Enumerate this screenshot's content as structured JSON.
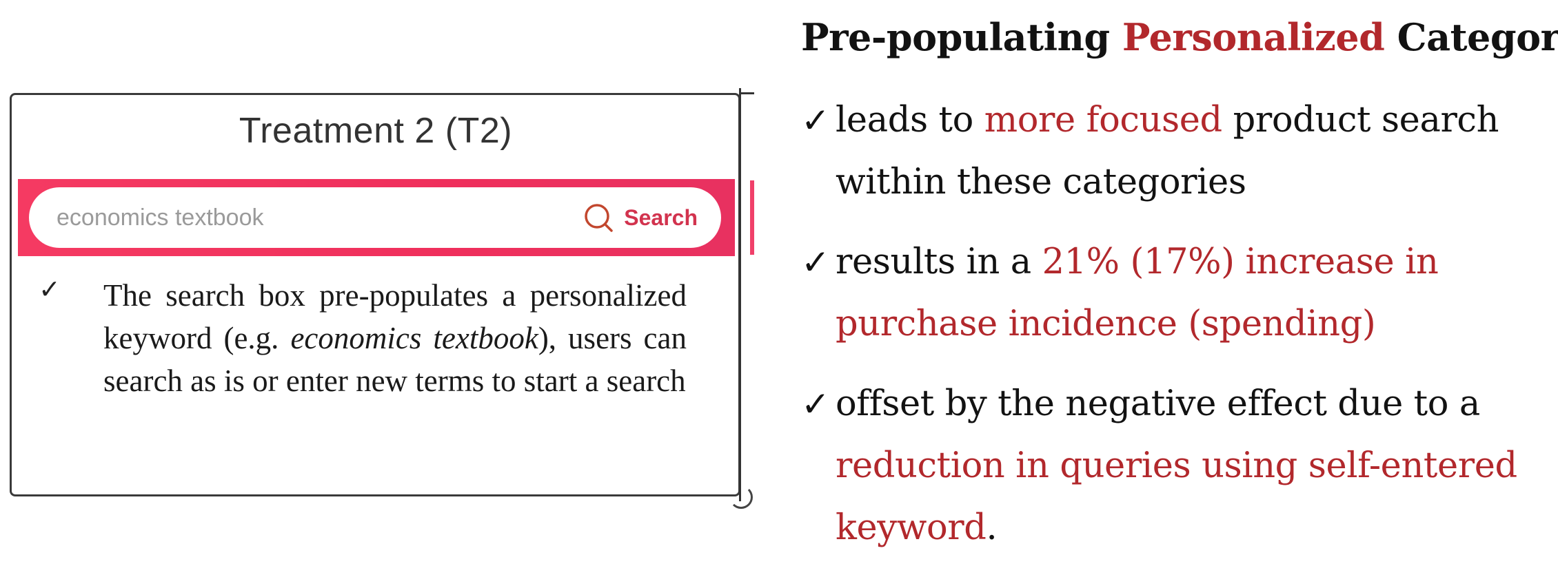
{
  "treatment_panel": {
    "title": "Treatment 2 (T2)",
    "search": {
      "placeholder": "economics textbook",
      "button_label": "Search",
      "icon": "search-icon"
    },
    "check_mark": "✓",
    "description": {
      "part1": "The search box pre-populates a personalized keyword (e.g. ",
      "italic": "economics textbook",
      "part2": "), users can search as is or enter new terms to start a search"
    }
  },
  "slide": {
    "heading": {
      "before": "Pre-populating ",
      "highlight": "Personalized",
      "after": " Category:"
    },
    "check_mark": "✓",
    "bullets": [
      {
        "before": "leads to ",
        "highlight": "more focused",
        "after": " product search within these categories"
      },
      {
        "before": "results in a ",
        "highlight": "21% (17%) increase in purchase incidence (spending)",
        "after": ""
      },
      {
        "before": "offset by the negative effect due to a ",
        "highlight": "reduction in queries using self-entered keyword",
        "after": "."
      }
    ]
  },
  "colors": {
    "accent_red": "#b2282c",
    "search_band": "#ef2f5c",
    "search_button_text": "#d2334e"
  }
}
